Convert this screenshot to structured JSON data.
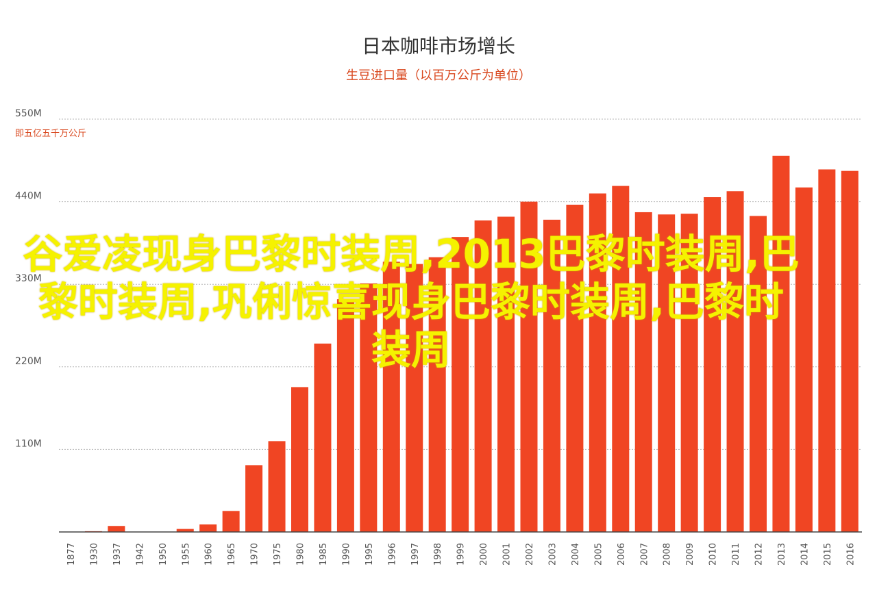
{
  "chart_data": {
    "type": "bar",
    "title": "日本咖啡市场增长",
    "subtitle": "生豆进口量（以百万公斤为单位）",
    "unit_note": "即五亿五千万公斤",
    "xlabel": "",
    "ylabel": "",
    "ylim": [
      0,
      550
    ],
    "y_ticks": [
      110,
      220,
      330,
      440,
      550
    ],
    "y_tick_labels": [
      "110M",
      "220M",
      "330M",
      "440M",
      "550M"
    ],
    "grid": true,
    "bar_color": "#f04523",
    "categories": [
      "1877",
      "1930",
      "1937",
      "1942",
      "1950",
      "1955",
      "1960",
      "1965",
      "1970",
      "1975",
      "1980",
      "1985",
      "1990",
      "1995",
      "1996",
      "1997",
      "1998",
      "1999",
      "2000",
      "2001",
      "2002",
      "2003",
      "2004",
      "2005",
      "2006",
      "2007",
      "2008",
      "2009",
      "2010",
      "2011",
      "2012",
      "2013",
      "2014",
      "2015",
      "2016"
    ],
    "values": [
      0,
      1,
      8,
      0,
      0,
      4,
      10,
      28,
      89,
      121,
      193,
      251,
      310,
      331,
      360,
      357,
      366,
      393,
      415,
      420,
      440,
      416,
      436,
      451,
      461,
      426,
      423,
      424,
      446,
      454,
      421,
      501,
      459,
      483,
      481
    ]
  },
  "overlay_text": "谷爱凌现身巴黎时装周,2013巴黎时装周,巴黎时装周,巩俐惊喜现身巴黎时装周,巴黎时装周"
}
